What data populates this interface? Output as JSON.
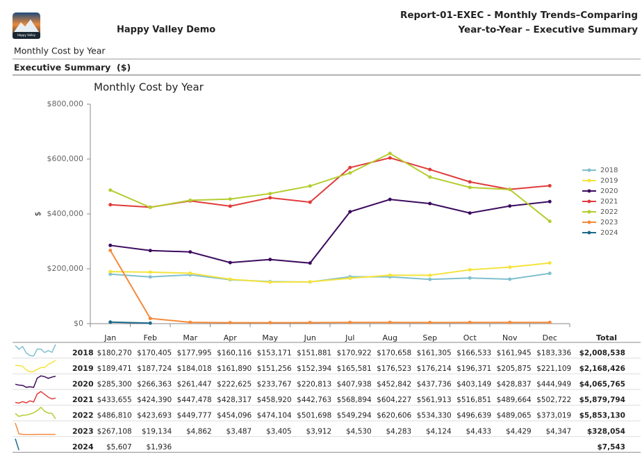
{
  "header": {
    "org": "Happy Valley Demo",
    "logo_text": "Happy Valley",
    "report_title": "Report-01-EXEC - Monthly Trends–Comparing Year-to-Year – Executive Summary"
  },
  "section": "Monthly Cost by Year",
  "subsection": "Executive Summary  ($)",
  "table": {
    "total_header": "Total"
  },
  "chart_data": {
    "type": "line",
    "title": "Monthly Cost by Year",
    "y_label": "$",
    "categories": [
      "Jan",
      "Feb",
      "Mar",
      "Apr",
      "May",
      "Jun",
      "Jul",
      "Aug",
      "Sep",
      "Oct",
      "Nov",
      "Dec"
    ],
    "ylim": [
      0,
      800000
    ],
    "yticks": [
      {
        "value": 0,
        "label": "$0"
      },
      {
        "value": 200000,
        "label": "$200,000"
      },
      {
        "value": 400000,
        "label": "$400,000"
      },
      {
        "value": 600000,
        "label": "$600,000"
      },
      {
        "value": 800000,
        "label": "$800,000"
      }
    ],
    "grid": false,
    "legend": "right",
    "series": [
      {
        "name": "2018",
        "color": "#7fbfcf",
        "values": [
          180270,
          170405,
          177995,
          160116,
          153171,
          151881,
          170922,
          170658,
          161305,
          166533,
          161945,
          183336
        ],
        "value_labels": [
          "$180,270",
          "$170,405",
          "$177,995",
          "$160,116",
          "$153,171",
          "$151,881",
          "$170,922",
          "$170,658",
          "$161,305",
          "$166,533",
          "$161,945",
          "$183,336"
        ],
        "total": {
          "value": 2008538,
          "label": "$2,008,538"
        }
      },
      {
        "name": "2019",
        "color": "#f5e33a",
        "values": [
          189471,
          187724,
          184018,
          161890,
          151256,
          152394,
          165581,
          176523,
          176214,
          196371,
          205875,
          221109
        ],
        "value_labels": [
          "$189,471",
          "$187,724",
          "$184,018",
          "$161,890",
          "$151,256",
          "$152,394",
          "$165,581",
          "$176,523",
          "$176,214",
          "$196,371",
          "$205,875",
          "$221,109"
        ],
        "total": {
          "value": 2168426,
          "label": "$2,168,426"
        }
      },
      {
        "name": "2020",
        "color": "#3b0a5e",
        "values": [
          285300,
          266363,
          261447,
          222625,
          233767,
          220813,
          407938,
          452842,
          437736,
          403149,
          428837,
          444949
        ],
        "value_labels": [
          "$285,300",
          "$266,363",
          "$261,447",
          "$222,625",
          "$233,767",
          "$220,813",
          "$407,938",
          "$452,842",
          "$437,736",
          "$403,149",
          "$428,837",
          "$444,949"
        ],
        "total": {
          "value": 4065765,
          "label": "$4,065,765"
        }
      },
      {
        "name": "2021",
        "color": "#e03a3a",
        "values": [
          433655,
          424390,
          447478,
          428317,
          458920,
          442763,
          568894,
          604227,
          561913,
          516851,
          489664,
          502722
        ],
        "value_labels": [
          "$433,655",
          "$424,390",
          "$447,478",
          "$428,317",
          "$458,920",
          "$442,763",
          "$568,894",
          "$604,227",
          "$561,913",
          "$516,851",
          "$489,664",
          "$502,722"
        ],
        "total": {
          "value": 5879794,
          "label": "$5,879,794"
        }
      },
      {
        "name": "2022",
        "color": "#b5cc2e",
        "values": [
          486810,
          423693,
          449777,
          454096,
          474104,
          501698,
          549294,
          620606,
          534330,
          496639,
          489065,
          373019
        ],
        "value_labels": [
          "$486,810",
          "$423,693",
          "$449,777",
          "$454,096",
          "$474,104",
          "$501,698",
          "$549,294",
          "$620,606",
          "$534,330",
          "$496,639",
          "$489,065",
          "$373,019"
        ],
        "total": {
          "value": 5853130,
          "label": "$5,853,130"
        }
      },
      {
        "name": "2023",
        "color": "#f58a3a",
        "values": [
          267108,
          19134,
          4862,
          3487,
          3405,
          3912,
          4530,
          4283,
          4124,
          4433,
          4429,
          4347
        ],
        "value_labels": [
          "$267,108",
          "$19,134",
          "$4,862",
          "$3,487",
          "$3,405",
          "$3,912",
          "$4,530",
          "$4,283",
          "$4,124",
          "$4,433",
          "$4,429",
          "$4,347"
        ],
        "total": {
          "value": 328054,
          "label": "$328,054"
        }
      },
      {
        "name": "2024",
        "color": "#1a6a8a",
        "values": [
          5607,
          1936,
          null,
          null,
          null,
          null,
          null,
          null,
          null,
          null,
          null,
          null
        ],
        "value_labels": [
          "$5,607",
          "$1,936",
          null,
          null,
          null,
          null,
          null,
          null,
          null,
          null,
          null,
          null
        ],
        "total": {
          "value": 7543,
          "label": "$7,543"
        }
      }
    ]
  }
}
